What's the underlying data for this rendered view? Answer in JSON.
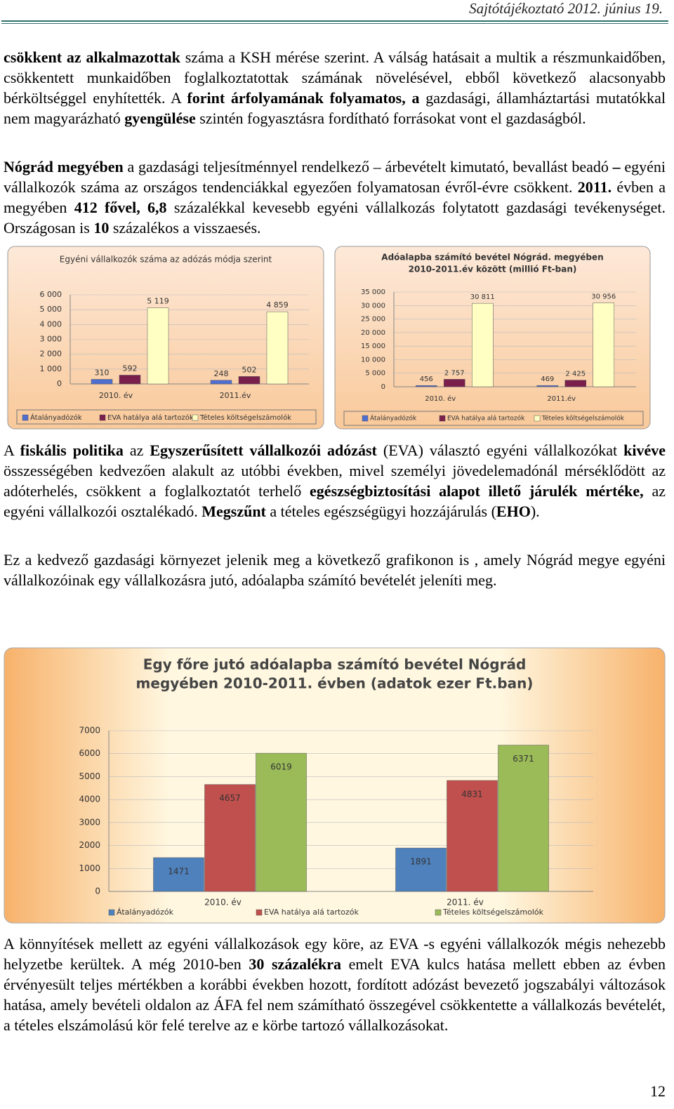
{
  "header": {
    "title": "Sajtótájékoztató 2012. június 19."
  },
  "paragraphs": [
    [
      {
        "t": "csökkent az alkalmazottak",
        "b": true
      },
      {
        "t": " száma a KSH mérése szerint. A válság hatásait a multik a részmunkaidőben, csökkentett munkaidőben foglalkoztatottak számának növelésével, ebből következő alacsonyabb bérköltséggel enyhítették. A "
      },
      {
        "t": "forint árfolyamának folyamatos, a",
        "b": true
      },
      {
        "t": " gazdasági, államháztartási mutatókkal nem magyarázható "
      },
      {
        "t": "gyengülése",
        "b": true
      },
      {
        "t": " szintén fogyasztásra fordítható forrásokat vont el gazdaságból."
      }
    ],
    [
      {
        "t": "Nógrád megyében",
        "b": true
      },
      {
        "t": " a gazdasági teljesítménnyel rendelkező – árbevételt kimutató, bevallást beadó "
      },
      {
        "t": "–",
        "b": true
      },
      {
        "t": " egyéni vállalkozók száma az országos tendenciákkal egyezően folyamatosan évről-évre csökkent. "
      },
      {
        "t": "2011.",
        "b": true
      },
      {
        "t": " évben a megyében "
      },
      {
        "t": "412 fővel, 6,8",
        "b": true
      },
      {
        "t": " százalékkal kevesebb egyéni vállalkozás folytatott gazdasági tevékenységet. Országosan is "
      },
      {
        "t": "10",
        "b": true
      },
      {
        "t": " százalékos a visszaesés."
      }
    ],
    [
      {
        "t": "A "
      },
      {
        "t": "fiskális politika",
        "b": true
      },
      {
        "t": " az "
      },
      {
        "t": "Egyszerűsített vállalkozói adózást",
        "b": true
      },
      {
        "t": " (EVA) választó egyéni vállalkozókat "
      },
      {
        "t": "kivéve",
        "b": true
      },
      {
        "t": " összességében kedvezően alakult az utóbbi években, mivel személyi jövedelemadónál mérséklődött az adóterhelés, csökkent a foglalkoztatót terhelő "
      },
      {
        "t": "egészségbiztosítási alapot illető járulék mértéke,",
        "b": true
      },
      {
        "t": " az egyéni vállalkozói osztalékadó. "
      },
      {
        "t": "Megszűnt",
        "b": true
      },
      {
        "t": " a tételes egészségügyi hozzájárulás ("
      },
      {
        "t": "EHO",
        "b": true
      },
      {
        "t": ")."
      }
    ],
    [
      {
        "t": "Ez a kedvező gazdasági környezet jelenik meg a következő grafikonon is , amely Nógrád megye egyéni vállalkozóinak egy vállalkozásra jutó, adóalapba számító  bevételét jeleníti meg."
      }
    ],
    [
      {
        "t": "A könnyítések mellett az egyéni vállalkozások egy köre, az EVA -s egyéni vállalkozók mégis nehezebb helyzetbe kerültek. A még 2010-ben "
      },
      {
        "t": "30 százalékra",
        "b": true
      },
      {
        "t": " emelt EVA kulcs hatása mellett ebben az évben érvényesült teljes mértékben a korábbi években hozott, fordított adózást bevezető jogszabályi változások hatása, amely bevételi oldalon az ÁFA fel nem számítható összegével csökkentette a vállalkozás bevételét, a tételes elszámolású kör felé terelve az e körbe tartozó vállalkozásokat."
      }
    ]
  ],
  "page_number": "12",
  "chart_data": [
    {
      "type": "bar",
      "title": [
        "Egyéni vállalkozók száma az adózás módja szerint"
      ],
      "categories": [
        "2010. év",
        "2011.év"
      ],
      "series": [
        {
          "name": "Átalányadózók",
          "color": "#4f6fd0",
          "values": [
            310,
            248
          ]
        },
        {
          "name": "EVA hatálya alá tartozók",
          "color": "#7a1f4c",
          "values": [
            592,
            502
          ]
        },
        {
          "name": "Tételes költségelszámolók",
          "color": "#ffffc4",
          "values": [
            5119,
            4859
          ],
          "value_labels": [
            "5 119",
            "4 859"
          ]
        }
      ],
      "ylim": [
        0,
        6000
      ],
      "yticks": [
        0,
        {
          "value": 1000,
          "label": "1 000"
        },
        {
          "value": 2000,
          "label": "2 000"
        },
        {
          "value": 3000,
          "label": "3 000"
        },
        {
          "value": 4000,
          "label": "4 000"
        },
        {
          "value": 5000,
          "label": "5 000"
        },
        {
          "value": 6000,
          "label": "6 000"
        }
      ]
    },
    {
      "type": "bar",
      "title": [
        "Adóalapba számító bevétel Nógrád. megyében",
        "2010-2011.év között (millió Ft-ban)"
      ],
      "categories": [
        "2010. év",
        "2011.év"
      ],
      "series": [
        {
          "name": "Átalányadózók",
          "color": "#4f6fd0",
          "values": [
            456,
            469
          ]
        },
        {
          "name": "EVA hatálya alá tartozók",
          "color": "#7a1f4c",
          "values": [
            2757,
            2425
          ],
          "value_labels": [
            "2 757",
            "2 425"
          ]
        },
        {
          "name": "Tételes költségelszámolók",
          "color": "#ffffc4",
          "values": [
            30811,
            30956
          ],
          "value_labels": [
            "30 811",
            "30 956"
          ]
        }
      ],
      "ylim": [
        0,
        35000
      ],
      "yticks": [
        0,
        {
          "value": 5000,
          "label": "5 000"
        },
        {
          "value": 10000,
          "label": "10 000"
        },
        {
          "value": 15000,
          "label": "15 000"
        },
        {
          "value": 20000,
          "label": "20 000"
        },
        {
          "value": 25000,
          "label": "25 000"
        },
        {
          "value": 30000,
          "label": "30 000"
        },
        {
          "value": 35000,
          "label": "35 000"
        }
      ]
    },
    {
      "type": "bar",
      "title": [
        "Egy főre jutó adóalapba számító bevétel Nógrád",
        "megyében 2010-2011. évben (adatok ezer Ft.ban)"
      ],
      "categories": [
        "2010. év",
        "2011. év"
      ],
      "series": [
        {
          "name": "Átalányadózók",
          "color": "#4f81bd",
          "values": [
            1471,
            1891
          ]
        },
        {
          "name": "EVA hatálya alá tartozók",
          "color": "#c0504d",
          "values": [
            4657,
            4831
          ]
        },
        {
          "name": "Tételes költségelszámolók",
          "color": "#9bbb59",
          "values": [
            6019,
            6371
          ]
        }
      ],
      "ylim": [
        0,
        7000
      ],
      "yticks": [
        0,
        1000,
        2000,
        3000,
        4000,
        5000,
        6000,
        7000
      ]
    }
  ]
}
